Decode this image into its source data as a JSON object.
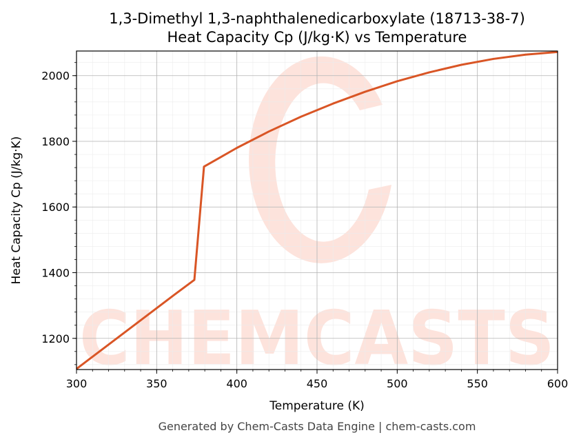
{
  "chart_data": {
    "type": "line",
    "title": "1,3-Dimethyl 1,3-naphthalenedicarboxylate (18713-38-7)",
    "subtitle": "Heat Capacity Cp (J/kg·K) vs Temperature",
    "xlabel": "Temperature (K)",
    "ylabel": "Heat Capacity Cp (J/kg·K)",
    "xlim": [
      300,
      600
    ],
    "ylim": [
      1105,
      2075
    ],
    "x_ticks": [
      300,
      350,
      400,
      450,
      500,
      550,
      600
    ],
    "y_ticks": [
      1200,
      1400,
      1600,
      1800,
      2000
    ],
    "grid": true,
    "line_color": "#d95525",
    "series": [
      {
        "x": [
          300,
          320,
          340,
          360,
          373.5,
          379.5,
          390,
          400,
          420,
          440,
          460,
          480,
          500,
          520,
          540,
          560,
          580,
          600
        ],
        "y": [
          1107,
          1181,
          1255,
          1329,
          1378,
          1723,
          1752,
          1780,
          1830,
          1875,
          1915,
          1951,
          1983,
          2010,
          2033,
          2051,
          2064,
          2072
        ]
      }
    ]
  },
  "watermark": {
    "text": "CHEMCASTS",
    "color": "#fde3dc"
  },
  "footer": "Generated by Chem-Casts Data Engine | chem-casts.com"
}
